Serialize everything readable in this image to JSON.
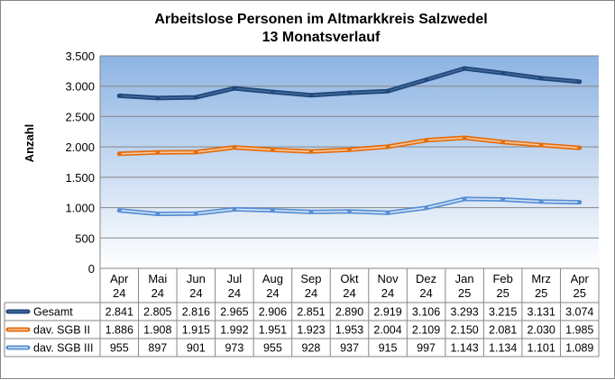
{
  "chart_data": {
    "type": "line",
    "title": "Arbeitslose Personen im Altmarkkreis Salzwedel",
    "subtitle": "13 Monatsverlauf",
    "ylabel": "Anzahl",
    "xlabel": "",
    "ylim": [
      0,
      3500
    ],
    "yticks": [
      0,
      500,
      1000,
      1500,
      2000,
      2500,
      3000,
      3500
    ],
    "ytick_labels": [
      "0",
      "500",
      "1.000",
      "1.500",
      "2.000",
      "2.500",
      "3.000",
      "3.500"
    ],
    "grid": true,
    "legend": "data-table-left",
    "categories": [
      [
        "Apr",
        "24"
      ],
      [
        "Mai",
        "24"
      ],
      [
        "Jun",
        "24"
      ],
      [
        "Jul",
        "24"
      ],
      [
        "Aug",
        "24"
      ],
      [
        "Sep",
        "24"
      ],
      [
        "Okt",
        "24"
      ],
      [
        "Nov",
        "24"
      ],
      [
        "Dez",
        "24"
      ],
      [
        "Jan",
        "25"
      ],
      [
        "Feb",
        "25"
      ],
      [
        "Mrz",
        "25"
      ],
      [
        "Apr",
        "25"
      ]
    ],
    "series": [
      {
        "name": "Gesamt",
        "color": "#1F497D",
        "values": [
          2841,
          2805,
          2816,
          2965,
          2906,
          2851,
          2890,
          2919,
          3106,
          3293,
          3215,
          3131,
          3074
        ],
        "labels": [
          "2.841",
          "2.805",
          "2.816",
          "2.965",
          "2.906",
          "2.851",
          "2.890",
          "2.919",
          "3.106",
          "3.293",
          "3.215",
          "3.131",
          "3.074"
        ]
      },
      {
        "name": "dav. SGB II",
        "color": "#E46C0A",
        "values": [
          1886,
          1908,
          1915,
          1992,
          1951,
          1923,
          1953,
          2004,
          2109,
          2150,
          2081,
          2030,
          1985
        ],
        "labels": [
          "1.886",
          "1.908",
          "1.915",
          "1.992",
          "1.951",
          "1.923",
          "1.953",
          "2.004",
          "2.109",
          "2.150",
          "2.081",
          "2.030",
          "1.985"
        ]
      },
      {
        "name": "dav. SGB III",
        "color": "#558ED5",
        "values": [
          955,
          897,
          901,
          973,
          955,
          928,
          937,
          915,
          997,
          1143,
          1134,
          1101,
          1089
        ],
        "labels": [
          "955",
          "897",
          "901",
          "973",
          "955",
          "928",
          "937",
          "915",
          "997",
          "1.143",
          "1.134",
          "1.101",
          "1.089"
        ]
      }
    ]
  }
}
